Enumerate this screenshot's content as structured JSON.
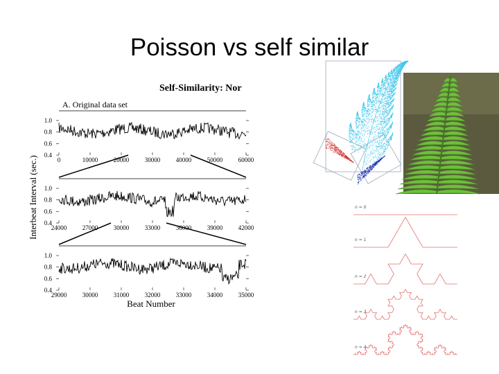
{
  "title": "Poisson vs self similar",
  "figure": {
    "title": "Self-Similarity:  Nor",
    "panel_label": "A. Original data set",
    "y_axis_label": "Interbeat Interval (sec.)",
    "x_axis_label": "Beat Number",
    "panels": [
      {
        "yticks": [
          "1.0",
          "0.8",
          "0.6",
          "0.4"
        ],
        "xticks": [
          "0",
          "10000",
          "20000",
          "30000",
          "40000",
          "50000",
          "60000"
        ]
      },
      {
        "yticks": [
          "1.0",
          "0.8",
          "0.6",
          "0.4"
        ],
        "xticks": [
          "24000",
          "27000",
          "30000",
          "33000",
          "36000",
          "39000",
          "42000"
        ]
      },
      {
        "yticks": [
          "1.0",
          "0.8",
          "0.6",
          "0.4"
        ],
        "xticks": [
          "29000",
          "30000",
          "31000",
          "32000",
          "33000",
          "34000",
          "35000"
        ]
      }
    ]
  },
  "koch": {
    "labels": [
      "n = 0",
      "n = 1",
      "n = 2",
      "n = 3",
      "n = 4"
    ]
  }
}
